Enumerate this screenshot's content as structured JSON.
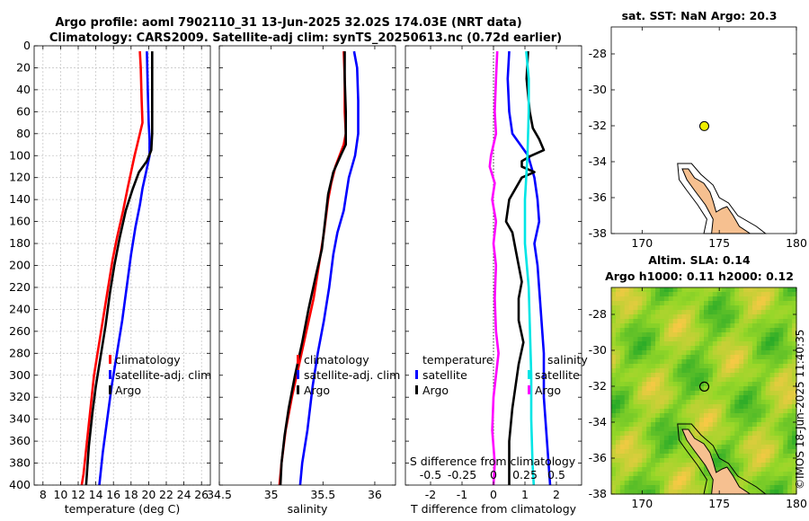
{
  "header": {
    "title_line1": "Argo profile: aoml 7902110_31 13-Jun-2025 32.02S 174.03E (NRT data)",
    "title_line2": "Climatology: CARS2009. Satellite-adj clim: synTS_20250613.nc (0.72d earlier)"
  },
  "watermark": "©IMOS 18-Jun-2025 11:40:35",
  "colors": {
    "red": "#ff0000",
    "blue": "#0000ff",
    "black": "#000000",
    "cyan": "#00e5e5",
    "magenta": "#ff00ff"
  },
  "chart_data": [
    {
      "type": "line",
      "name": "temperature-profile",
      "xlabel": "temperature (deg C)",
      "ylabel": "depth",
      "xlim": [
        7,
        27
      ],
      "ylim": [
        0,
        400
      ],
      "xticks": [
        8,
        10,
        12,
        14,
        16,
        18,
        20,
        22,
        24,
        26
      ],
      "yticks": [
        0,
        20,
        40,
        60,
        80,
        100,
        120,
        140,
        160,
        180,
        200,
        220,
        240,
        260,
        280,
        300,
        320,
        340,
        360,
        380,
        400
      ],
      "legend": [
        "climatology",
        "satellite-adj. clim",
        "Argo"
      ],
      "series": [
        {
          "name": "climatology",
          "color": "red",
          "points": [
            [
              19.0,
              5
            ],
            [
              19.1,
              20
            ],
            [
              19.2,
              50
            ],
            [
              19.3,
              70
            ],
            [
              19.0,
              80
            ],
            [
              18.7,
              90
            ],
            [
              18.4,
              100
            ],
            [
              18.0,
              115
            ],
            [
              17.6,
              130
            ],
            [
              17.1,
              150
            ],
            [
              16.4,
              175
            ],
            [
              15.9,
              195
            ],
            [
              15.4,
              220
            ],
            [
              14.8,
              250
            ],
            [
              14.3,
              275
            ],
            [
              13.8,
              300
            ],
            [
              13.4,
              330
            ],
            [
              13.0,
              360
            ],
            [
              12.6,
              390
            ],
            [
              12.4,
              400
            ]
          ]
        },
        {
          "name": "satellite-adj. clim",
          "color": "blue",
          "points": [
            [
              19.8,
              5
            ],
            [
              19.9,
              40
            ],
            [
              20.0,
              70
            ],
            [
              20.1,
              85
            ],
            [
              20.1,
              100
            ],
            [
              19.7,
              115
            ],
            [
              19.3,
              130
            ],
            [
              19.0,
              145
            ],
            [
              18.5,
              165
            ],
            [
              18.0,
              190
            ],
            [
              17.5,
              220
            ],
            [
              17.0,
              250
            ],
            [
              16.4,
              280
            ],
            [
              15.8,
              310
            ],
            [
              15.3,
              340
            ],
            [
              14.8,
              370
            ],
            [
              14.4,
              400
            ]
          ]
        },
        {
          "name": "Argo",
          "color": "black",
          "points": [
            [
              20.4,
              5
            ],
            [
              20.4,
              30
            ],
            [
              20.4,
              60
            ],
            [
              20.4,
              80
            ],
            [
              20.3,
              95
            ],
            [
              19.8,
              105
            ],
            [
              18.9,
              115
            ],
            [
              18.2,
              130
            ],
            [
              17.4,
              150
            ],
            [
              16.7,
              175
            ],
            [
              16.1,
              200
            ],
            [
              15.6,
              225
            ],
            [
              15.1,
              255
            ],
            [
              14.6,
              280
            ],
            [
              14.0,
              310
            ],
            [
              13.6,
              335
            ],
            [
              13.2,
              365
            ],
            [
              12.9,
              400
            ]
          ]
        }
      ]
    },
    {
      "type": "line",
      "name": "salinity-profile",
      "xlabel": "salinity",
      "ylabel": "depth",
      "xlim": [
        34.5,
        36.2
      ],
      "ylim": [
        0,
        400
      ],
      "xticks": [
        34.5,
        35,
        35.5,
        36
      ],
      "xtick_labels": [
        "34.5",
        "35",
        "35.5",
        "36"
      ],
      "legend": [
        "climatology",
        "satellite-adj. clim",
        "Argo"
      ],
      "series": [
        {
          "name": "climatology",
          "color": "red",
          "points": [
            [
              35.7,
              5
            ],
            [
              35.71,
              30
            ],
            [
              35.71,
              60
            ],
            [
              35.72,
              80
            ],
            [
              35.7,
              90
            ],
            [
              35.66,
              100
            ],
            [
              35.62,
              110
            ],
            [
              35.58,
              125
            ],
            [
              35.55,
              140
            ],
            [
              35.51,
              170
            ],
            [
              35.46,
              200
            ],
            [
              35.41,
              230
            ],
            [
              35.34,
              260
            ],
            [
              35.27,
              290
            ],
            [
              35.2,
              320
            ],
            [
              35.14,
              350
            ],
            [
              35.1,
              380
            ],
            [
              35.08,
              400
            ]
          ]
        },
        {
          "name": "satellite-adj. clim",
          "color": "blue",
          "points": [
            [
              35.8,
              5
            ],
            [
              35.83,
              20
            ],
            [
              35.84,
              50
            ],
            [
              35.84,
              80
            ],
            [
              35.81,
              100
            ],
            [
              35.75,
              120
            ],
            [
              35.7,
              150
            ],
            [
              35.64,
              170
            ],
            [
              35.6,
              190
            ],
            [
              35.56,
              220
            ],
            [
              35.51,
              250
            ],
            [
              35.45,
              280
            ],
            [
              35.4,
              310
            ],
            [
              35.35,
              350
            ],
            [
              35.3,
              380
            ],
            [
              35.28,
              400
            ]
          ]
        },
        {
          "name": "Argo",
          "color": "black",
          "points": [
            [
              35.71,
              5
            ],
            [
              35.71,
              30
            ],
            [
              35.72,
              60
            ],
            [
              35.72,
              90
            ],
            [
              35.67,
              100
            ],
            [
              35.6,
              115
            ],
            [
              35.55,
              135
            ],
            [
              35.52,
              160
            ],
            [
              35.49,
              185
            ],
            [
              35.43,
              210
            ],
            [
              35.36,
              240
            ],
            [
              35.3,
              270
            ],
            [
              35.23,
              300
            ],
            [
              35.17,
              330
            ],
            [
              35.13,
              355
            ],
            [
              35.1,
              380
            ],
            [
              35.09,
              400
            ]
          ]
        }
      ]
    },
    {
      "type": "line",
      "name": "difference-profile",
      "xlabel": "T difference from climatology",
      "x2label": "S difference from climatology",
      "ylabel": "depth",
      "xlim": [
        -2.8,
        2.8
      ],
      "ylim": [
        0,
        400
      ],
      "xticks": [
        -2,
        -1,
        0,
        1,
        2
      ],
      "xtick_labels": [
        "-2",
        "-1",
        "0",
        "1",
        "2"
      ],
      "x2ticks": [
        -0.5,
        -0.25,
        0,
        0.25,
        0.5
      ],
      "x2tick_labels": [
        "-0.5",
        "-0.25",
        "0",
        "0.25",
        "0.5"
      ],
      "legend_t_title": "temperature",
      "legend_s_title": "salinity",
      "legend_t": [
        "satellite",
        "Argo"
      ],
      "legend_s": [
        "satellite",
        "Argo"
      ],
      "series": [
        {
          "name": "T satellite",
          "color": "blue",
          "points": [
            [
              0.5,
              5
            ],
            [
              0.45,
              30
            ],
            [
              0.5,
              60
            ],
            [
              0.6,
              80
            ],
            [
              1.1,
              100
            ],
            [
              1.3,
              120
            ],
            [
              1.4,
              140
            ],
            [
              1.45,
              160
            ],
            [
              1.3,
              180
            ],
            [
              1.4,
              200
            ],
            [
              1.5,
              240
            ],
            [
              1.6,
              280
            ],
            [
              1.6,
              320
            ],
            [
              1.7,
              360
            ],
            [
              1.8,
              400
            ]
          ]
        },
        {
          "name": "T Argo",
          "color": "black",
          "points": [
            [
              1.1,
              5
            ],
            [
              1.05,
              30
            ],
            [
              1.15,
              60
            ],
            [
              1.25,
              75
            ],
            [
              1.45,
              85
            ],
            [
              1.6,
              95
            ],
            [
              1.2,
              100
            ],
            [
              0.9,
              105
            ],
            [
              0.9,
              110
            ],
            [
              1.3,
              115
            ],
            [
              0.9,
              120
            ],
            [
              0.5,
              140
            ],
            [
              0.4,
              160
            ],
            [
              0.6,
              170
            ],
            [
              0.7,
              185
            ],
            [
              0.8,
              200
            ],
            [
              0.9,
              215
            ],
            [
              0.8,
              230
            ],
            [
              0.8,
              250
            ],
            [
              0.95,
              270
            ],
            [
              0.8,
              290
            ],
            [
              0.7,
              310
            ],
            [
              0.6,
              330
            ],
            [
              0.5,
              360
            ],
            [
              0.5,
              400
            ]
          ]
        },
        {
          "name": "S satellite",
          "color": "cyan",
          "points": [
            [
              0.26,
              5
            ],
            [
              0.28,
              30
            ],
            [
              0.28,
              60
            ],
            [
              0.27,
              100
            ],
            [
              0.25,
              140
            ],
            [
              0.25,
              180
            ],
            [
              0.28,
              220
            ],
            [
              0.29,
              260
            ],
            [
              0.3,
              300
            ],
            [
              0.3,
              340
            ],
            [
              0.31,
              380
            ],
            [
              0.32,
              400
            ]
          ]
        },
        {
          "name": "S Argo",
          "color": "magenta",
          "points": [
            [
              0.03,
              5
            ],
            [
              0.02,
              30
            ],
            [
              0.01,
              60
            ],
            [
              0.02,
              80
            ],
            [
              -0.02,
              100
            ],
            [
              -0.03,
              110
            ],
            [
              0.01,
              125
            ],
            [
              -0.01,
              140
            ],
            [
              0.02,
              160
            ],
            [
              0.0,
              180
            ],
            [
              0.02,
              200
            ],
            [
              0.01,
              230
            ],
            [
              0.02,
              260
            ],
            [
              0.04,
              280
            ],
            [
              0.02,
              300
            ],
            [
              0.0,
              320
            ],
            [
              -0.01,
              350
            ],
            [
              0.01,
              380
            ],
            [
              0.0,
              400
            ]
          ]
        }
      ]
    },
    {
      "type": "map",
      "name": "sst-map",
      "title": "sat. SST: NaN Argo: 20.3",
      "xlim": [
        168,
        180
      ],
      "ylim": [
        -38,
        -26.5
      ],
      "xticks": [
        170,
        175,
        180
      ],
      "yticks": [
        -28,
        -30,
        -32,
        -34,
        -36,
        -38
      ],
      "argo_position": [
        174.03,
        -32.02
      ],
      "marker_color": "#f0ef00"
    },
    {
      "type": "heatmap",
      "name": "sla-map",
      "title_line1": "Altim. SLA: 0.14",
      "title_line2": "Argo h1000: 0.11 h2000: 0.12",
      "xlim": [
        168,
        180
      ],
      "ylim": [
        -38,
        -26.5
      ],
      "xticks": [
        170,
        175,
        180
      ],
      "yticks": [
        -28,
        -30,
        -32,
        -34,
        -36,
        -38
      ],
      "argo_position": [
        174.03,
        -32.02
      ]
    }
  ]
}
